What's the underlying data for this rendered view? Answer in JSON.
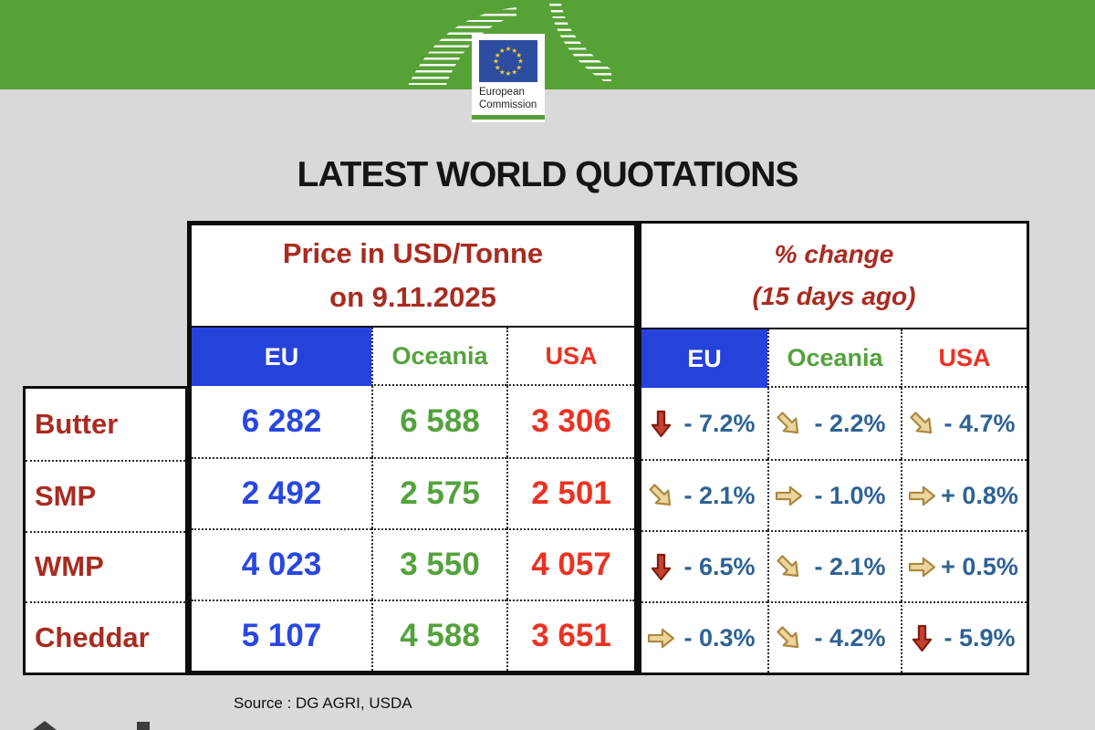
{
  "logo": {
    "org_line1": "European",
    "org_line2": "Commission"
  },
  "title": "LATEST WORLD QUOTATIONS",
  "price_table": {
    "header_line1": "Price in USD/Tonne",
    "header_line2": "on 9.11.2025",
    "columns": {
      "eu": "EU",
      "oceania": "Oceania",
      "usa": "USA"
    }
  },
  "change_table": {
    "header_line1": "% change",
    "header_line2": "(15 days ago)",
    "columns": {
      "eu": "EU",
      "oceania": "Oceania",
      "usa": "USA"
    }
  },
  "rows": [
    {
      "label": "Butter",
      "prices": {
        "eu": "6 282",
        "oceania": "6 588",
        "usa": "3 306"
      },
      "changes": {
        "eu": {
          "dir": "down",
          "color": "red",
          "text": "- 7.2%"
        },
        "oceania": {
          "dir": "downright",
          "color": "tan",
          "text": "- 2.2%"
        },
        "usa": {
          "dir": "downright",
          "color": "tan",
          "text": "- 4.7%"
        }
      }
    },
    {
      "label": "SMP",
      "prices": {
        "eu": "2 492",
        "oceania": "2 575",
        "usa": "2 501"
      },
      "changes": {
        "eu": {
          "dir": "downright",
          "color": "tan",
          "text": "- 2.1%"
        },
        "oceania": {
          "dir": "right",
          "color": "tan",
          "text": "- 1.0%"
        },
        "usa": {
          "dir": "right",
          "color": "tan",
          "text": "+ 0.8%"
        }
      }
    },
    {
      "label": "WMP",
      "prices": {
        "eu": "4 023",
        "oceania": "3 550",
        "usa": "4 057"
      },
      "changes": {
        "eu": {
          "dir": "down",
          "color": "red",
          "text": "- 6.5%"
        },
        "oceania": {
          "dir": "downright",
          "color": "tan",
          "text": "- 2.1%"
        },
        "usa": {
          "dir": "right",
          "color": "tan",
          "text": "+ 0.5%"
        }
      }
    },
    {
      "label": "Cheddar",
      "prices": {
        "eu": "5 107",
        "oceania": "4 588",
        "usa": "3 651"
      },
      "changes": {
        "eu": {
          "dir": "right",
          "color": "tan",
          "text": "- 0.3%"
        },
        "oceania": {
          "dir": "downright",
          "color": "tan",
          "text": "- 4.2%"
        },
        "usa": {
          "dir": "down",
          "color": "red",
          "text": "- 5.9%"
        }
      }
    }
  ],
  "source": "Source : DG AGRI, USDA",
  "colors": {
    "band_green": "#57a236",
    "flag_blue": "#2d4da0",
    "star_yellow": "#f6d037",
    "background_gray": "#d9d9d9",
    "dark_red": "#a92b20",
    "eu_header_blue": "#2543da",
    "price_blue": "#2847e1",
    "oceania_green": "#54a23c",
    "usa_red": "#ea3223",
    "percent_steel_blue": "#2e6295",
    "arrow_red": "#c2412f",
    "arrow_tan": "#ecd49d"
  },
  "chart_data": {
    "type": "table",
    "title": "LATEST WORLD QUOTATIONS",
    "price_header": "Price in USD/Tonne on 9.11.2025",
    "change_header": "% change (15 days ago)",
    "columns": [
      "EU",
      "Oceania",
      "USA"
    ],
    "products": [
      "Butter",
      "SMP",
      "WMP",
      "Cheddar"
    ],
    "prices_usd_per_tonne": {
      "Butter": [
        6282,
        6588,
        3306
      ],
      "SMP": [
        2492,
        2575,
        2501
      ],
      "WMP": [
        4023,
        3550,
        4057
      ],
      "Cheddar": [
        5107,
        4588,
        3651
      ]
    },
    "pct_change_15_days": {
      "Butter": [
        -7.2,
        -2.2,
        -4.7
      ],
      "SMP": [
        -2.1,
        -1.0,
        0.8
      ],
      "WMP": [
        -6.5,
        -2.1,
        0.5
      ],
      "Cheddar": [
        -0.3,
        -4.2,
        -5.9
      ]
    },
    "source": "DG AGRI, USDA"
  }
}
